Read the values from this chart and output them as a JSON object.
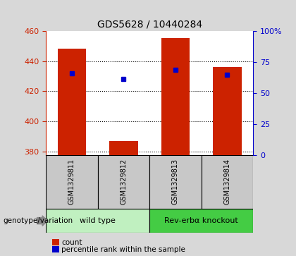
{
  "title": "GDS5628 / 10440284",
  "samples": [
    "GSM1329811",
    "GSM1329812",
    "GSM1329813",
    "GSM1329814"
  ],
  "counts": [
    448,
    387,
    455,
    436
  ],
  "percentiles": [
    432,
    428,
    434,
    431
  ],
  "ylim_left": [
    378,
    460
  ],
  "ylim_right": [
    0,
    100
  ],
  "yticks_left": [
    380,
    400,
    420,
    440,
    460
  ],
  "yticks_right": [
    0,
    25,
    50,
    75,
    100
  ],
  "ytick_labels_right": [
    "0",
    "25",
    "50",
    "75",
    "100%"
  ],
  "bar_color": "#cc2200",
  "dot_color": "#0000cc",
  "background_color": "#d8d8d8",
  "plot_bg": "#ffffff",
  "groups": [
    {
      "label": "wild type",
      "indices": [
        0,
        1
      ],
      "color": "#c0f0c0"
    },
    {
      "label": "Rev-erbα knockout",
      "indices": [
        2,
        3
      ],
      "color": "#44cc44"
    }
  ],
  "genotype_label": "genotype/variation",
  "legend_count_label": "count",
  "legend_percentile_label": "percentile rank within the sample",
  "title_fontsize": 10,
  "axis_label_color_left": "#cc2200",
  "axis_label_color_right": "#0000cc",
  "bar_width": 0.55
}
